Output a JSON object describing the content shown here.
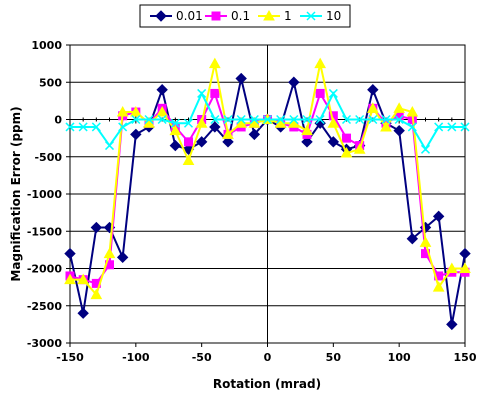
{
  "chart_data": {
    "type": "line",
    "xlabel": "Rotation (mrad)",
    "ylabel": "Magnification Error (ppm)",
    "xlim": [
      -150,
      150
    ],
    "ylim": [
      -3000,
      1000
    ],
    "x_ticks": [
      -150,
      -100,
      -50,
      0,
      50,
      100,
      150
    ],
    "y_ticks": [
      1000,
      500,
      0,
      -500,
      -1000,
      -1500,
      -2000,
      -2500,
      -3000
    ],
    "grid": true,
    "legend_position": "top",
    "x": [
      -150,
      -140,
      -130,
      -120,
      -110,
      -100,
      -90,
      -80,
      -70,
      -60,
      -50,
      -40,
      -30,
      -20,
      -10,
      0,
      10,
      20,
      30,
      40,
      50,
      60,
      70,
      80,
      90,
      100,
      110,
      120,
      130,
      140,
      150
    ],
    "series": [
      {
        "name": "0.01",
        "color": "#000080",
        "marker": "diamond",
        "values": [
          -1800,
          -2600,
          -1450,
          -1450,
          -1850,
          -200,
          -100,
          400,
          -350,
          -400,
          -300,
          -100,
          -300,
          550,
          -200,
          0,
          -100,
          500,
          -300,
          -50,
          -300,
          -400,
          -350,
          400,
          -50,
          -150,
          -1600,
          -1450,
          -1300,
          -2750,
          -1800
        ]
      },
      {
        "name": "0.1",
        "color": "#ff00ff",
        "marker": "square",
        "values": [
          -2100,
          -2150,
          -2200,
          -1950,
          50,
          100,
          -50,
          150,
          -100,
          -300,
          0,
          350,
          -200,
          -100,
          -50,
          0,
          -50,
          -100,
          -200,
          350,
          50,
          -250,
          -350,
          150,
          -50,
          50,
          0,
          -1800,
          -2100,
          -2050,
          -2050
        ]
      },
      {
        "name": "1",
        "color": "#ffff00",
        "marker": "triangle",
        "values": [
          -2150,
          -2150,
          -2350,
          -1800,
          100,
          100,
          -50,
          100,
          -150,
          -550,
          -50,
          750,
          -200,
          -50,
          -50,
          0,
          -50,
          -50,
          -150,
          750,
          -50,
          -450,
          -400,
          150,
          -100,
          150,
          100,
          -1650,
          -2250,
          -2000,
          -2000
        ]
      },
      {
        "name": "10",
        "color": "#00ffff",
        "marker": "x",
        "values": [
          -100,
          -100,
          -100,
          -350,
          -100,
          0,
          0,
          0,
          -50,
          -50,
          350,
          0,
          0,
          0,
          0,
          0,
          0,
          0,
          0,
          0,
          350,
          0,
          0,
          0,
          0,
          0,
          -100,
          -400,
          -100,
          -100,
          -100
        ]
      }
    ]
  }
}
